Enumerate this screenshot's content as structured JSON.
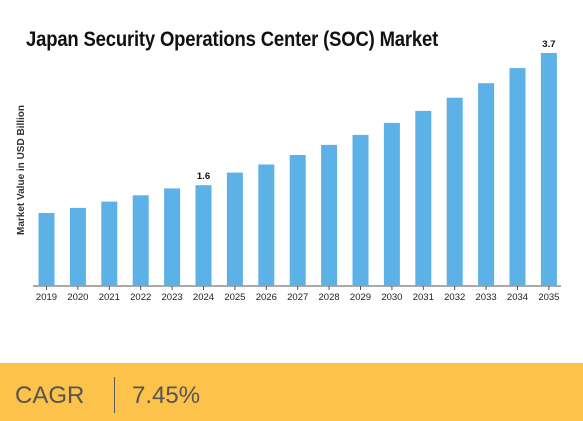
{
  "chart_data": {
    "type": "bar",
    "title": "Japan Security Operations Center (SOC) Market",
    "ylabel": "Market Value in USD Billion",
    "xlabel": "",
    "categories": [
      "2019",
      "2020",
      "2021",
      "2022",
      "2023",
      "2024",
      "2025",
      "2026",
      "2027",
      "2028",
      "2029",
      "2030",
      "2031",
      "2032",
      "2033",
      "2034",
      "2035"
    ],
    "values": [
      1.16,
      1.24,
      1.34,
      1.44,
      1.55,
      1.6,
      1.8,
      1.93,
      2.08,
      2.24,
      2.4,
      2.59,
      2.78,
      2.99,
      3.22,
      3.46,
      3.7
    ],
    "data_labels": [
      {
        "category": "2024",
        "text": "1.6"
      },
      {
        "category": "2035",
        "text": "3.7"
      }
    ],
    "ylim": [
      0,
      3.7
    ],
    "grid": false,
    "legend": "none",
    "bar_color": "#5cb2e6"
  },
  "cagr": {
    "label": "CAGR",
    "value": "7.45%",
    "color": "#fcc24a"
  }
}
